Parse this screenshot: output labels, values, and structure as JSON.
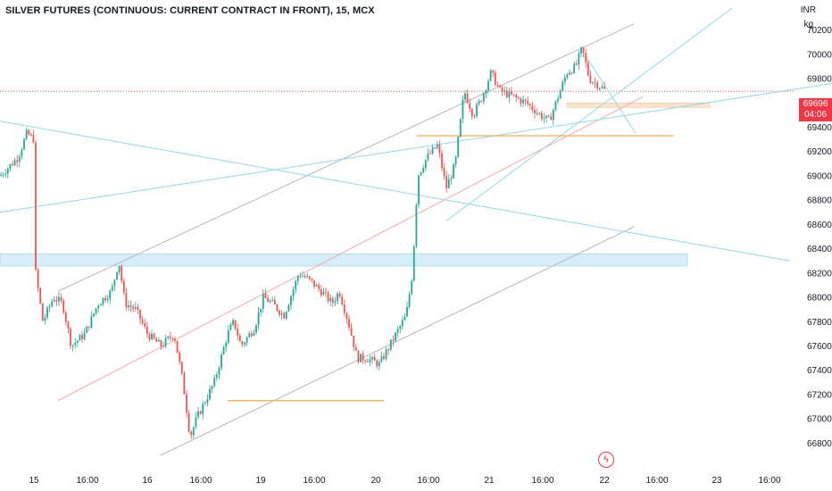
{
  "header": {
    "title": "SILVER FUTURES (CONTINUOUS: CURRENT CONTRACT IN FRONT), 15, MCX"
  },
  "price_scale": {
    "currency": "INR",
    "unit": "kg",
    "last_price": "69696",
    "countdown": "04:06"
  },
  "colors": {
    "up": "#26a69a",
    "down": "#ef5350",
    "last_price_bg": "#f23645",
    "trendline_cyan": "#8fd8ea",
    "channel_gray": "#b2b5be",
    "support_orange": "#f7b35c",
    "zone_blue": "#d6eef8"
  },
  "chart_data": {
    "type": "candlestick",
    "title": "SILVER FUTURES (CONTINUOUS: CURRENT CONTRACT IN FRONT), 15, MCX",
    "ylabel": "",
    "ylim": [
      66700,
      70300
    ],
    "y_ticks": [
      66800,
      67000,
      67200,
      67400,
      67600,
      67800,
      68000,
      68200,
      68400,
      68600,
      68800,
      69000,
      69200,
      69400,
      69600,
      69800,
      70000,
      70200
    ],
    "x_ticks": [
      "15",
      "16:00",
      "16",
      "16:00",
      "19",
      "16:00",
      "20",
      "16:00",
      "21",
      "16:00",
      "22",
      "16:00",
      "23",
      "16:00"
    ],
    "grid": false,
    "last_price": 69696,
    "price_path": [
      [
        0,
        69000
      ],
      [
        20,
        69150
      ],
      [
        30,
        69350
      ],
      [
        38,
        69300
      ],
      [
        40,
        68200
      ],
      [
        48,
        67800
      ],
      [
        60,
        68000
      ],
      [
        70,
        67950
      ],
      [
        80,
        67600
      ],
      [
        95,
        67700
      ],
      [
        110,
        67950
      ],
      [
        125,
        68050
      ],
      [
        133,
        68300
      ],
      [
        140,
        67950
      ],
      [
        152,
        67900
      ],
      [
        165,
        67700
      ],
      [
        180,
        67600
      ],
      [
        195,
        67700
      ],
      [
        205,
        67300
      ],
      [
        213,
        66850
      ],
      [
        220,
        67000
      ],
      [
        240,
        67300
      ],
      [
        255,
        67700
      ],
      [
        262,
        67800
      ],
      [
        270,
        67600
      ],
      [
        285,
        67750
      ],
      [
        295,
        68000
      ],
      [
        305,
        67950
      ],
      [
        318,
        67850
      ],
      [
        335,
        68200
      ],
      [
        345,
        68150
      ],
      [
        360,
        68050
      ],
      [
        372,
        67950
      ],
      [
        380,
        68050
      ],
      [
        390,
        67800
      ],
      [
        400,
        67500
      ],
      [
        410,
        67500
      ],
      [
        425,
        67450
      ],
      [
        440,
        67650
      ],
      [
        455,
        67850
      ],
      [
        462,
        68200
      ],
      [
        468,
        69000
      ],
      [
        478,
        69150
      ],
      [
        490,
        69250
      ],
      [
        500,
        68900
      ],
      [
        510,
        69100
      ],
      [
        520,
        69700
      ],
      [
        530,
        69500
      ],
      [
        540,
        69650
      ],
      [
        550,
        69850
      ],
      [
        560,
        69700
      ],
      [
        575,
        69650
      ],
      [
        590,
        69600
      ],
      [
        605,
        69500
      ],
      [
        615,
        69450
      ],
      [
        625,
        69650
      ],
      [
        635,
        69850
      ],
      [
        645,
        69900
      ],
      [
        652,
        70050
      ],
      [
        660,
        69800
      ],
      [
        670,
        69750
      ],
      [
        678,
        69700
      ]
    ],
    "drawings": {
      "channel_upper": [
        [
          65,
          68050
        ],
        [
          710,
          70250
        ]
      ],
      "channel_lower": [
        [
          180,
          66700
        ],
        [
          710,
          68580
        ]
      ],
      "red_trend": [
        [
          65,
          67150
        ],
        [
          720,
          69650
        ]
      ],
      "cyan_descending": [
        [
          0,
          69450
        ],
        [
          885,
          68300
        ]
      ],
      "cyan_long_rising": [
        [
          0,
          68700
        ],
        [
          932,
          69760
        ]
      ],
      "cyan_steep": [
        [
          500,
          68630
        ],
        [
          820,
          70380
        ]
      ],
      "resistance_zone": [
        [
          0,
          68350
        ],
        [
          770,
          68280
        ]
      ],
      "support_low": [
        [
          255,
          67150
        ],
        [
          430,
          67150
        ]
      ],
      "support_mid": [
        [
          467,
          69330
        ],
        [
          755,
          69330
        ]
      ],
      "recent_zone": [
        [
          635,
          69600
        ],
        [
          795,
          69560
        ]
      ]
    }
  }
}
